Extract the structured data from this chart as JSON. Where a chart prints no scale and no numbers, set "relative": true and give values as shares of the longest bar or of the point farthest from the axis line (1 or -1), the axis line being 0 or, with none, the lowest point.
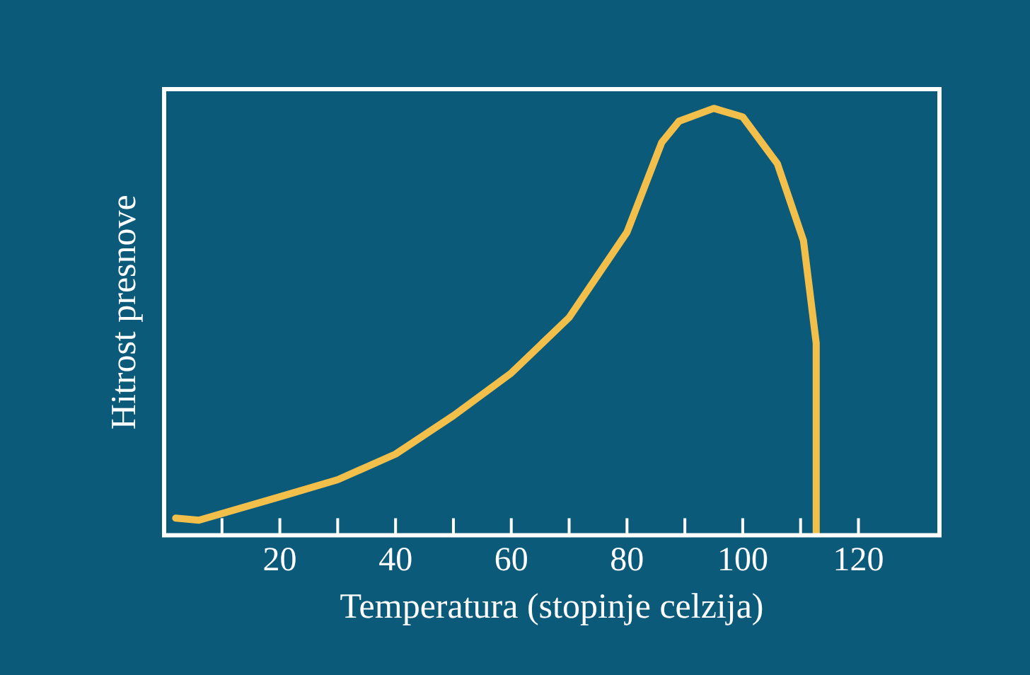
{
  "chart_data": {
    "type": "line",
    "relative": true,
    "xlabel": "Temperatura (stopinje celzija)",
    "ylabel": "Hitrost presnove",
    "xlim": [
      0,
      134
    ],
    "xticks": [
      {
        "value": 10,
        "label": null
      },
      20,
      {
        "value": 30,
        "label": null
      },
      40,
      {
        "value": 50,
        "label": null
      },
      60,
      {
        "value": 70,
        "label": null
      },
      80,
      {
        "value": 90,
        "label": null
      },
      100,
      {
        "value": 110,
        "label": null
      },
      120
    ],
    "series": [
      {
        "color": "#f2c04a",
        "x": [
          2,
          6,
          20,
          30,
          40,
          50,
          60,
          70,
          80,
          86,
          89,
          95,
          100,
          106,
          110.5,
          112.7,
          112.7
        ],
        "values": [
          0.04,
          0.035,
          0.09,
          0.13,
          0.19,
          0.28,
          0.38,
          0.51,
          0.71,
          0.92,
          0.97,
          1.0,
          0.98,
          0.87,
          0.69,
          0.45,
          0
        ]
      }
    ],
    "grid": false,
    "legend": false,
    "marker": "none",
    "line_style": "solid"
  }
}
